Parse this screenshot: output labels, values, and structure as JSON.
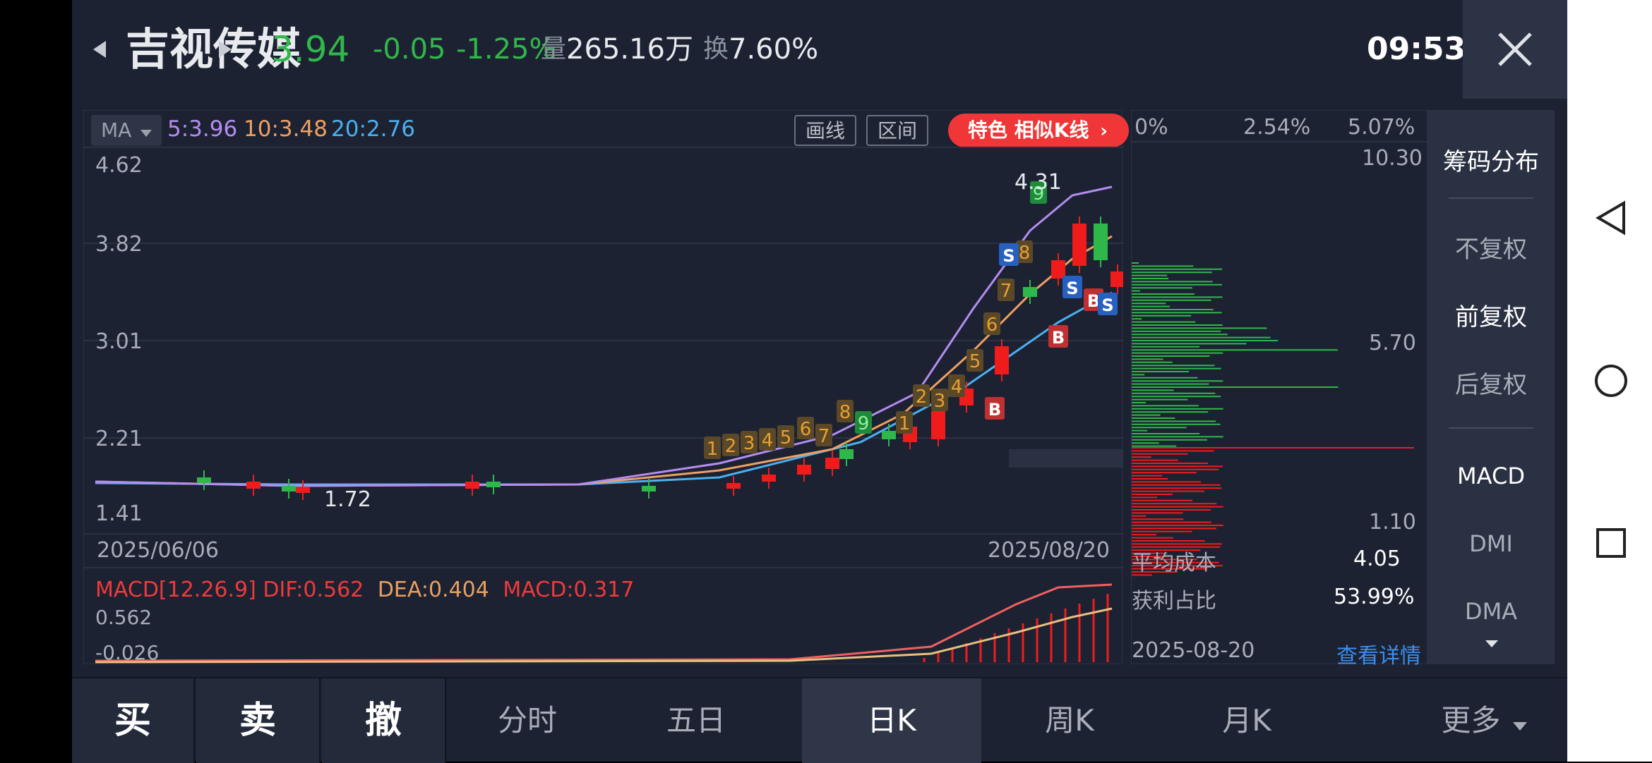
{
  "header": {
    "stock_name": "吉视传媒",
    "price": "3.94",
    "change": "-0.05",
    "change_pct": "-1.25%",
    "volume_label": "量",
    "volume": "265.16万",
    "turnover_label": "换",
    "turnover": "7.60%",
    "time": "09:53"
  },
  "kline": {
    "ma_selector": "MA",
    "ma5": "5:3.96",
    "ma10": "10:3.48",
    "ma20": "20:2.76",
    "draw_button": "画线",
    "range_button": "区间",
    "feature_pill": "特色  相似K线",
    "y_ticks": [
      "4.62",
      "3.82",
      "3.01",
      "2.21",
      "1.41"
    ],
    "high_label": "4.31",
    "low_label": "1.72",
    "date_start": "2025/06/06",
    "date_end": "2025/08/20",
    "buy_marker": "B",
    "sell_marker": "S"
  },
  "macd": {
    "title": "MACD[12.26.9]",
    "dif": "DIF:0.562",
    "dea": "DEA:0.404",
    "macd": "MACD:0.317",
    "top": "0.562",
    "bottom": "-0.026"
  },
  "chips": {
    "pct_0": "0%",
    "pct_1": "2.54%",
    "pct_2": "5.07%",
    "price_high": "10.30",
    "price_mid": "5.70",
    "price_low": "1.10",
    "avg_cost_label": "平均成本",
    "avg_cost": "4.05",
    "profit_label": "获利占比",
    "profit": "53.99%",
    "date": "2025-08-20",
    "detail_link": "查看详情"
  },
  "side_menu": {
    "title": "筹码分布",
    "items": [
      "不复权",
      "前复权",
      "后复权"
    ],
    "indicators": [
      "MACD",
      "DMI",
      "DMA"
    ]
  },
  "bottom": {
    "buy": "买",
    "sell": "卖",
    "cancel": "撤",
    "tabs": [
      "分时",
      "五日",
      "日K",
      "周K",
      "月K",
      "更多"
    ]
  },
  "colors": {
    "up": "#f01c1c",
    "down": "#2fb84a",
    "ma5": "#b58cf0",
    "ma10": "#f0a060",
    "ma20": "#4ab0f0",
    "signal": "#e8a030"
  },
  "icons": [
    "close-icon",
    "back-icon",
    "home-icon",
    "recent-apps-icon",
    "arrow-left-icon",
    "arrow-right-icon",
    "caret-down-icon"
  ]
}
